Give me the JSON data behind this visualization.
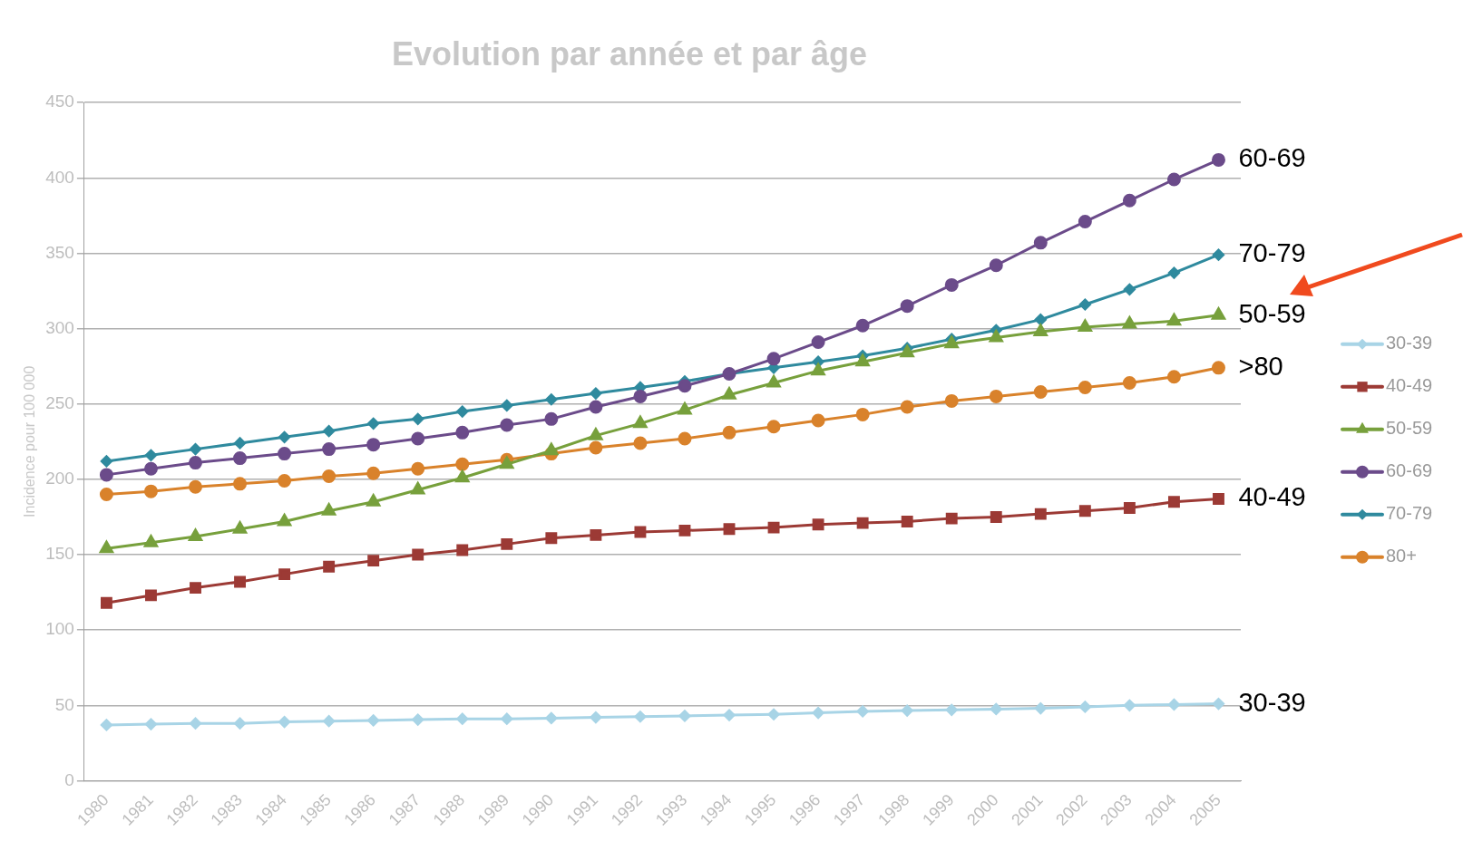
{
  "chart_data": {
    "type": "line",
    "title": "Evolution par année et par âge",
    "ylabel": "Incidence pour 100 000",
    "categories": [
      "1980",
      "1981",
      "1982",
      "1983",
      "1984",
      "1985",
      "1986",
      "1987",
      "1988",
      "1989",
      "1990",
      "1991",
      "1992",
      "1993",
      "1994",
      "1995",
      "1996",
      "1997",
      "1998",
      "1999",
      "2000",
      "2001",
      "2002",
      "2003",
      "2004",
      "2005"
    ],
    "ylim": [
      0,
      450
    ],
    "yticks": [
      0,
      50,
      100,
      150,
      200,
      250,
      300,
      350,
      400,
      450
    ],
    "grid": "y",
    "legend": "right",
    "series": [
      {
        "name": "30-39",
        "color": "#a8d4e6",
        "marker": "diamond",
        "values": [
          37,
          37.5,
          38,
          38,
          39,
          39.5,
          40,
          40.5,
          41,
          41,
          41.5,
          42,
          42.5,
          43,
          43.5,
          44,
          45,
          46,
          46.5,
          47,
          47.5,
          48,
          49,
          50,
          50.5,
          51
        ]
      },
      {
        "name": "40-49",
        "color": "#9c3a35",
        "marker": "square",
        "values": [
          118,
          123,
          128,
          132,
          137,
          142,
          146,
          150,
          153,
          157,
          161,
          163,
          165,
          166,
          167,
          168,
          170,
          171,
          172,
          174,
          175,
          177,
          179,
          181,
          185,
          187
        ]
      },
      {
        "name": "50-59",
        "color": "#77a03c",
        "marker": "triangle",
        "values": [
          154,
          158,
          162,
          167,
          172,
          179,
          185,
          193,
          201,
          210,
          219,
          229,
          237,
          246,
          256,
          264,
          272,
          278,
          284,
          290,
          294,
          298,
          301,
          303,
          305,
          309
        ]
      },
      {
        "name": "60-69",
        "color": "#6b4b8a",
        "marker": "circle",
        "values": [
          203,
          207,
          211,
          214,
          217,
          220,
          223,
          227,
          231,
          236,
          240,
          248,
          255,
          262,
          270,
          280,
          291,
          302,
          315,
          329,
          342,
          357,
          371,
          385,
          399,
          412
        ]
      },
      {
        "name": "70-79",
        "color": "#2f8a9e",
        "marker": "diamond",
        "values": [
          212,
          216,
          220,
          224,
          228,
          232,
          237,
          240,
          245,
          249,
          253,
          257,
          261,
          265,
          270,
          274,
          278,
          282,
          287,
          293,
          299,
          306,
          316,
          326,
          337,
          349
        ]
      },
      {
        "name": "80+",
        "color": "#d9822b",
        "marker": "circle",
        "values": [
          190,
          192,
          195,
          197,
          199,
          202,
          204,
          207,
          210,
          213,
          217,
          221,
          224,
          227,
          231,
          235,
          239,
          243,
          248,
          252,
          255,
          258,
          261,
          264,
          268,
          274
        ]
      }
    ],
    "annotations": [
      {
        "text": "60-69",
        "x": "2005",
        "y": 412
      },
      {
        "text": "70-79",
        "x": "2005",
        "y": 349
      },
      {
        "text": "50-59",
        "x": "2005",
        "y": 309
      },
      {
        "text": ">80",
        "x": "2005",
        "y": 274
      },
      {
        "text": "40-49",
        "x": "2005",
        "y": 187
      },
      {
        "text": "30-39",
        "x": "2005",
        "y": 51
      }
    ]
  }
}
